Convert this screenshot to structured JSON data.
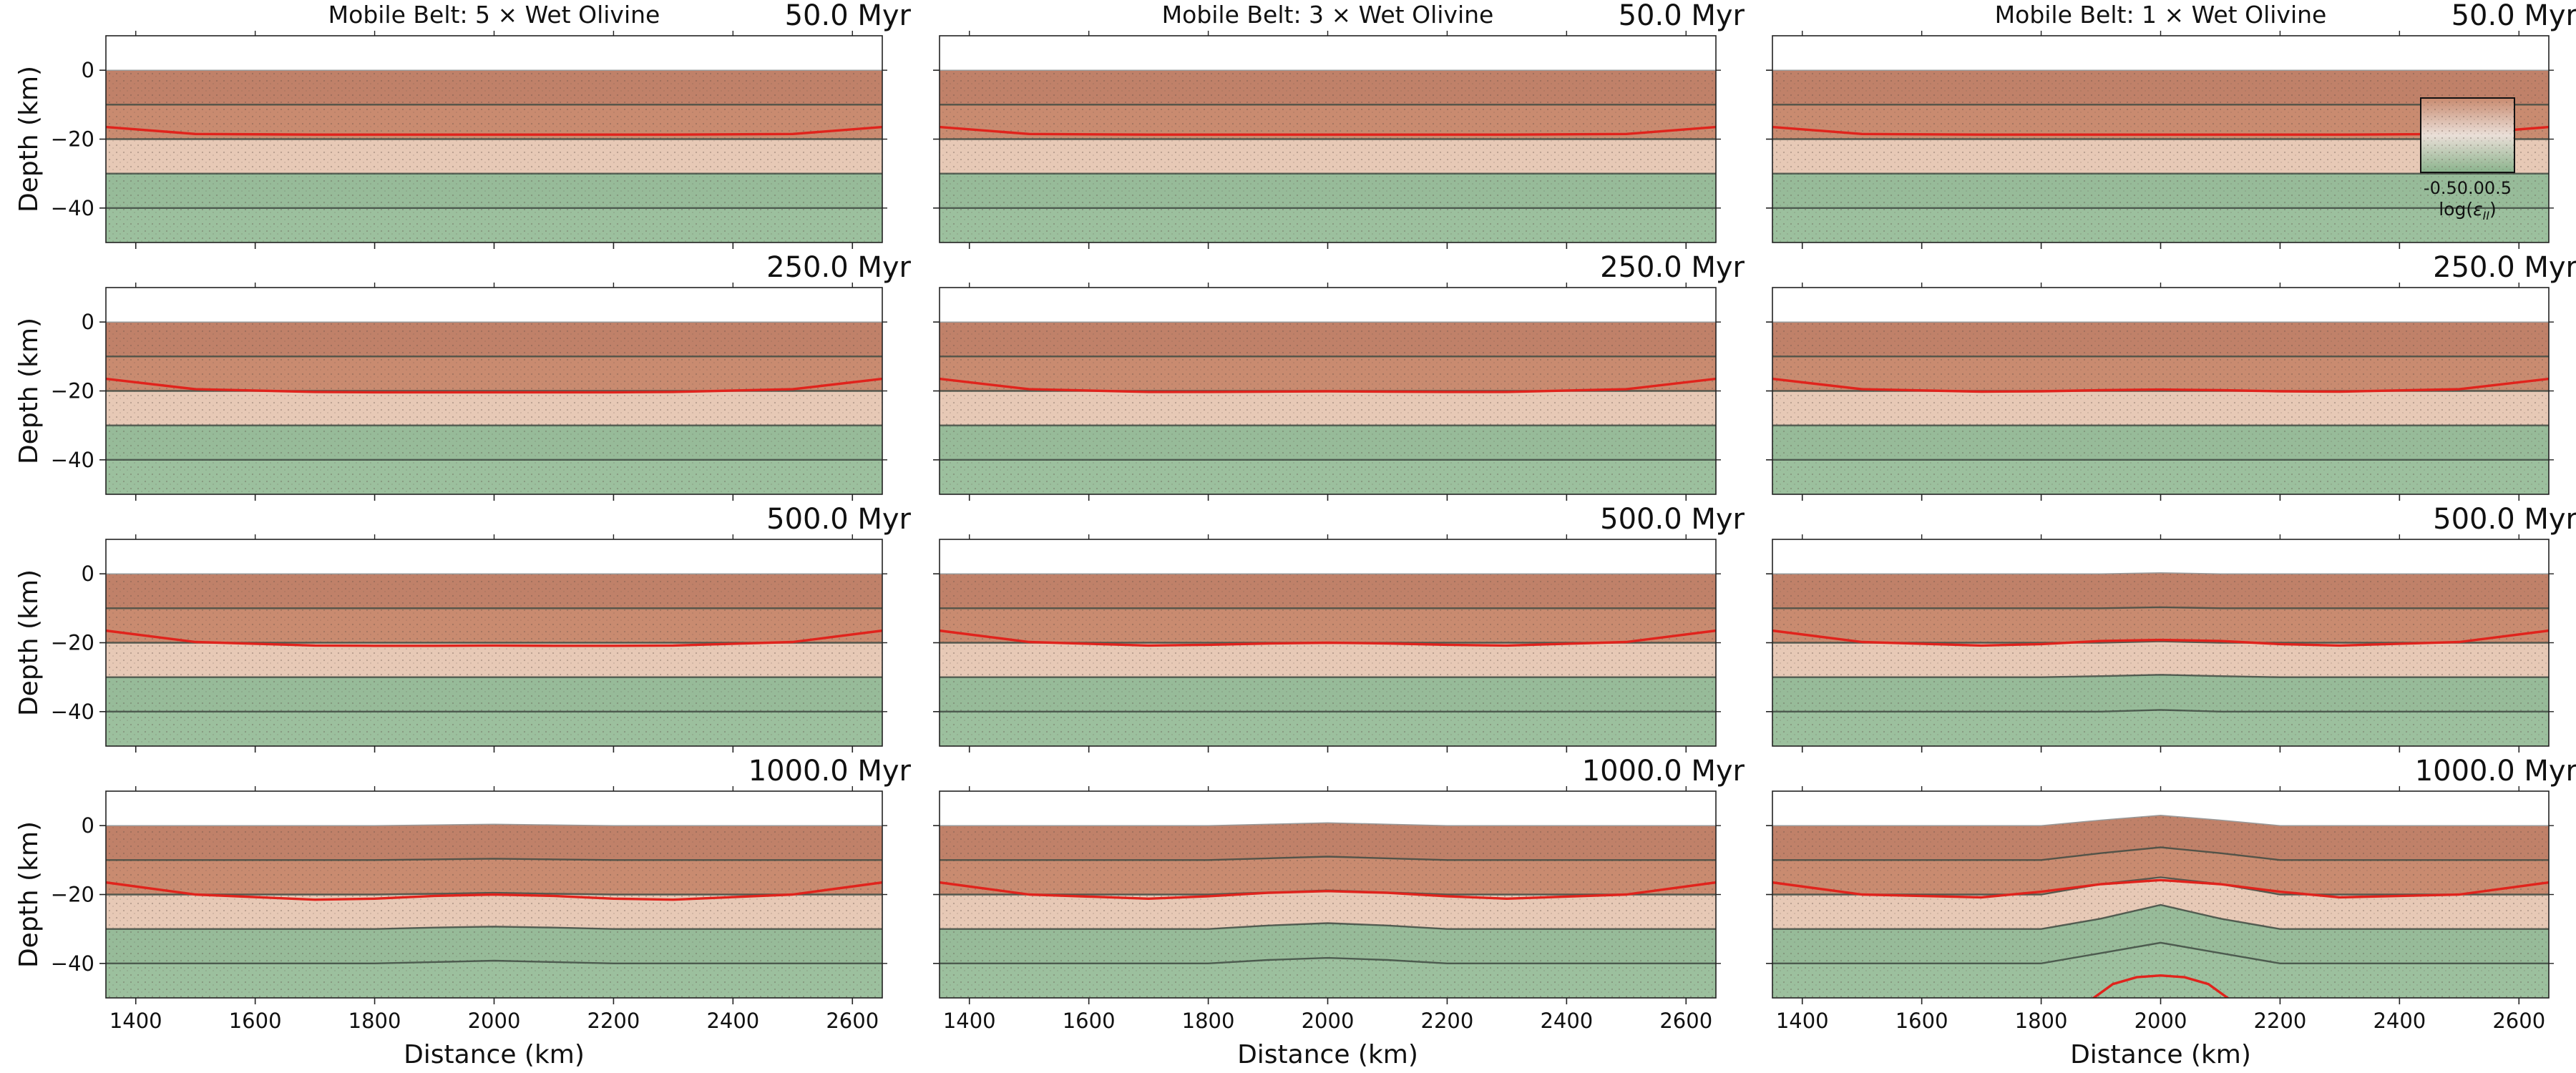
{
  "figure": {
    "colors": {
      "upper_crust": "#c98b70",
      "upper_crust_dark": "#b77862",
      "lower_crust": "#e7c9b6",
      "mantle": "#9cc09e",
      "mantle_dark": "#8aaf8e",
      "interface_line": "#3f4a42",
      "isotherm_line": "#e0231c",
      "mesh_dots": "#5a4a42"
    }
  },
  "chart_data": {
    "type": "heatmap",
    "description_of_axes": "cross-sections",
    "xlabel": "Distance (km)",
    "ylabel": "Depth (km)",
    "xlim": [
      1350,
      2650
    ],
    "ylim": [
      -50,
      10
    ],
    "xticks": [
      1400,
      1600,
      1800,
      2000,
      2200,
      2400,
      2600
    ],
    "yticks": [
      0,
      -20,
      -40
    ],
    "x_tick_labels": [
      "1400",
      "1600",
      "1800",
      "2000",
      "2200",
      "2400",
      "2600"
    ],
    "y_tick_labels": [
      "0",
      "−20",
      "−40"
    ],
    "layers": [
      {
        "name": "upper crust",
        "top_km": 0,
        "bottom_km": -20
      },
      {
        "name": "lower crust",
        "top_km": -20,
        "bottom_km": -30
      },
      {
        "name": "mantle lithosphere",
        "top_km": -30,
        "bottom_km": -50
      }
    ],
    "columns": [
      {
        "title": "Mobile Belt: 5 × Wet Olivine",
        "factor": 5
      },
      {
        "title": "Mobile Belt: 3 × Wet Olivine",
        "factor": 3
      },
      {
        "title": "Mobile Belt: 1 × Wet Olivine",
        "factor": 1
      }
    ],
    "rows": [
      {
        "time_label": "50.0 Myr",
        "time_myr": 50
      },
      {
        "time_label": "250.0 Myr",
        "time_myr": 250
      },
      {
        "time_label": "500.0 Myr",
        "time_myr": 500
      },
      {
        "time_label": "1000.0 Myr",
        "time_myr": 1000
      }
    ],
    "interfaces_x": [
      1350,
      1500,
      1700,
      1800,
      1900,
      2000,
      2100,
      2200,
      2300,
      2500,
      2650
    ],
    "panels": [
      {
        "row": 0,
        "col": 0,
        "surface": [
          0,
          0,
          0,
          0,
          0,
          0,
          0,
          0,
          0,
          0,
          0
        ],
        "interfaces": [
          [
            -10,
            -10,
            -10,
            -10,
            -10,
            -10,
            -10,
            -10,
            -10,
            -10,
            -10
          ],
          [
            -20,
            -20,
            -20,
            -20,
            -20,
            -20,
            -20,
            -20,
            -20,
            -20,
            -20
          ],
          [
            -30,
            -30,
            -30,
            -30,
            -30,
            -30,
            -30,
            -30,
            -30,
            -30,
            -30
          ],
          [
            -40,
            -40,
            -40,
            -40,
            -40,
            -40,
            -40,
            -40,
            -40,
            -40,
            -40
          ]
        ],
        "isotherm": [
          -16.5,
          -18.5,
          -18.7,
          -18.7,
          -18.7,
          -18.7,
          -18.7,
          -18.7,
          -18.7,
          -18.5,
          -16.5
        ]
      },
      {
        "row": 0,
        "col": 1,
        "surface": [
          0,
          0,
          0,
          0,
          0,
          0,
          0,
          0,
          0,
          0,
          0
        ],
        "interfaces": [
          [
            -10,
            -10,
            -10,
            -10,
            -10,
            -10,
            -10,
            -10,
            -10,
            -10,
            -10
          ],
          [
            -20,
            -20,
            -20,
            -20,
            -20,
            -20,
            -20,
            -20,
            -20,
            -20,
            -20
          ],
          [
            -30,
            -30,
            -30,
            -30,
            -30,
            -30,
            -30,
            -30,
            -30,
            -30,
            -30
          ],
          [
            -40,
            -40,
            -40,
            -40,
            -40,
            -40,
            -40,
            -40,
            -40,
            -40,
            -40
          ]
        ],
        "isotherm": [
          -16.5,
          -18.5,
          -18.7,
          -18.7,
          -18.7,
          -18.7,
          -18.7,
          -18.7,
          -18.7,
          -18.5,
          -16.5
        ]
      },
      {
        "row": 0,
        "col": 2,
        "surface": [
          0,
          0,
          0,
          0,
          0,
          0,
          0,
          0,
          0,
          0,
          0
        ],
        "interfaces": [
          [
            -10,
            -10,
            -10,
            -10,
            -10,
            -10,
            -10,
            -10,
            -10,
            -10,
            -10
          ],
          [
            -20,
            -20,
            -20,
            -20,
            -20,
            -20,
            -20,
            -20,
            -20,
            -20,
            -20
          ],
          [
            -30,
            -30,
            -30,
            -30,
            -30,
            -30,
            -30,
            -30,
            -30,
            -30,
            -30
          ],
          [
            -40,
            -40,
            -40,
            -40,
            -40,
            -40,
            -40,
            -40,
            -40,
            -40,
            -40
          ]
        ],
        "isotherm": [
          -16.5,
          -18.5,
          -18.7,
          -18.7,
          -18.7,
          -18.7,
          -18.7,
          -18.7,
          -18.7,
          -18.5,
          -16.5
        ]
      },
      {
        "row": 1,
        "col": 0,
        "surface": [
          0,
          0,
          0,
          0,
          0,
          0,
          0,
          0,
          0,
          0,
          0
        ],
        "interfaces": [
          [
            -10,
            -10,
            -10,
            -10,
            -10,
            -10,
            -10,
            -10,
            -10,
            -10,
            -10
          ],
          [
            -20,
            -20,
            -20,
            -20,
            -20,
            -20,
            -20,
            -20,
            -20,
            -20,
            -20
          ],
          [
            -30,
            -30,
            -30,
            -30,
            -30,
            -30,
            -30,
            -30,
            -30,
            -30,
            -30
          ],
          [
            -40,
            -40,
            -40,
            -40,
            -40,
            -40,
            -40,
            -40,
            -40,
            -40,
            -40
          ]
        ],
        "isotherm": [
          -16.5,
          -19.5,
          -20.3,
          -20.4,
          -20.4,
          -20.4,
          -20.4,
          -20.4,
          -20.3,
          -19.5,
          -16.5
        ]
      },
      {
        "row": 1,
        "col": 1,
        "surface": [
          0,
          0,
          0,
          0,
          0,
          0,
          0,
          0,
          0,
          0,
          0
        ],
        "interfaces": [
          [
            -10,
            -10,
            -10,
            -10,
            -10,
            -10,
            -10,
            -10,
            -10,
            -10,
            -10
          ],
          [
            -20,
            -20,
            -20,
            -20,
            -20,
            -20,
            -20,
            -20,
            -20,
            -20,
            -20
          ],
          [
            -30,
            -30,
            -30,
            -30,
            -30,
            -30,
            -30,
            -30,
            -30,
            -30,
            -30
          ],
          [
            -40,
            -40,
            -40,
            -40,
            -40,
            -40,
            -40,
            -40,
            -40,
            -40,
            -40
          ]
        ],
        "isotherm": [
          -16.5,
          -19.5,
          -20.3,
          -20.3,
          -20.2,
          -20.1,
          -20.2,
          -20.3,
          -20.3,
          -19.5,
          -16.5
        ]
      },
      {
        "row": 1,
        "col": 2,
        "surface": [
          0,
          0,
          0,
          0,
          0,
          0,
          0,
          0,
          0,
          0,
          0
        ],
        "interfaces": [
          [
            -10,
            -10,
            -10,
            -10,
            -10,
            -10,
            -10,
            -10,
            -10,
            -10,
            -10
          ],
          [
            -20,
            -20,
            -20,
            -20,
            -20,
            -20,
            -20,
            -20,
            -20,
            -20,
            -20
          ],
          [
            -30,
            -30,
            -30,
            -30,
            -30,
            -30,
            -30,
            -30,
            -30,
            -30,
            -30
          ],
          [
            -40,
            -40,
            -40,
            -40,
            -40,
            -40,
            -40,
            -40,
            -40,
            -40,
            -40
          ]
        ],
        "isotherm": [
          -16.5,
          -19.5,
          -20.2,
          -20.1,
          -19.8,
          -19.6,
          -19.8,
          -20.1,
          -20.2,
          -19.5,
          -16.5
        ]
      },
      {
        "row": 2,
        "col": 0,
        "surface": [
          0,
          0,
          0,
          0,
          0,
          0,
          0,
          0,
          0,
          0,
          0
        ],
        "interfaces": [
          [
            -10,
            -10,
            -10,
            -10,
            -10,
            -10,
            -10,
            -10,
            -10,
            -10,
            -10
          ],
          [
            -20,
            -20,
            -20,
            -20,
            -20,
            -20,
            -20,
            -20,
            -20,
            -20,
            -20
          ],
          [
            -30,
            -30,
            -30,
            -30,
            -30,
            -30,
            -30,
            -30,
            -30,
            -30,
            -30
          ],
          [
            -40,
            -40,
            -40,
            -40,
            -40,
            -40,
            -40,
            -40,
            -40,
            -40,
            -40
          ]
        ],
        "isotherm": [
          -16.5,
          -19.8,
          -20.8,
          -20.9,
          -20.9,
          -20.8,
          -20.9,
          -20.9,
          -20.8,
          -19.8,
          -16.5
        ]
      },
      {
        "row": 2,
        "col": 1,
        "surface": [
          0,
          0,
          0,
          0,
          0,
          0,
          0,
          0,
          0,
          0,
          0
        ],
        "interfaces": [
          [
            -10,
            -10,
            -10,
            -10,
            -10,
            -10,
            -10,
            -10,
            -10,
            -10,
            -10
          ],
          [
            -20,
            -20,
            -20,
            -20,
            -20,
            -20,
            -20,
            -20,
            -20,
            -20,
            -20
          ],
          [
            -30,
            -30,
            -30,
            -30,
            -30,
            -30,
            -30,
            -30,
            -30,
            -30,
            -30
          ],
          [
            -40,
            -40,
            -40,
            -40,
            -40,
            -40,
            -40,
            -40,
            -40,
            -40,
            -40
          ]
        ],
        "isotherm": [
          -16.5,
          -19.8,
          -20.8,
          -20.6,
          -20.2,
          -20.0,
          -20.2,
          -20.6,
          -20.8,
          -19.8,
          -16.5
        ]
      },
      {
        "row": 2,
        "col": 2,
        "surface": [
          0,
          0,
          0,
          0,
          0,
          0.3,
          0,
          0,
          0,
          0,
          0
        ],
        "interfaces": [
          [
            -10,
            -10,
            -10,
            -10,
            -10,
            -9.7,
            -10,
            -10,
            -10,
            -10,
            -10
          ],
          [
            -20,
            -20,
            -20,
            -20,
            -20,
            -19.6,
            -20,
            -20,
            -20,
            -20,
            -20
          ],
          [
            -30,
            -30,
            -30,
            -30,
            -29.7,
            -29.3,
            -29.7,
            -30,
            -30,
            -30,
            -30
          ],
          [
            -40,
            -40,
            -40,
            -40,
            -40,
            -39.5,
            -40,
            -40,
            -40,
            -40,
            -40
          ]
        ],
        "isotherm": [
          -16.5,
          -19.8,
          -20.8,
          -20.4,
          -19.5,
          -19.2,
          -19.5,
          -20.4,
          -20.8,
          -19.8,
          -16.5
        ]
      },
      {
        "row": 3,
        "col": 0,
        "surface": [
          0,
          0,
          0,
          0,
          0.2,
          0.4,
          0.2,
          0,
          0,
          0,
          0
        ],
        "interfaces": [
          [
            -10,
            -10,
            -10,
            -10,
            -9.8,
            -9.6,
            -9.8,
            -10,
            -10,
            -10,
            -10
          ],
          [
            -20,
            -20,
            -20,
            -20,
            -19.8,
            -19.5,
            -19.8,
            -20,
            -20,
            -20,
            -20
          ],
          [
            -30,
            -30,
            -30,
            -30,
            -29.6,
            -29.3,
            -29.6,
            -30,
            -30,
            -30,
            -30
          ],
          [
            -40,
            -40,
            -40,
            -40,
            -39.6,
            -39.2,
            -39.6,
            -40,
            -40,
            -40,
            -40
          ]
        ],
        "isotherm": [
          -16.5,
          -20.0,
          -21.5,
          -21.2,
          -20.4,
          -20.0,
          -20.4,
          -21.2,
          -21.5,
          -20.0,
          -16.5
        ]
      },
      {
        "row": 3,
        "col": 1,
        "surface": [
          0,
          0,
          0,
          0,
          0.4,
          0.8,
          0.4,
          0,
          0,
          0,
          0
        ],
        "interfaces": [
          [
            -10,
            -10,
            -10,
            -10,
            -9.5,
            -9.0,
            -9.5,
            -10,
            -10,
            -10,
            -10
          ],
          [
            -20,
            -20,
            -20,
            -20,
            -19.4,
            -18.8,
            -19.4,
            -20,
            -20,
            -20,
            -20
          ],
          [
            -30,
            -30,
            -30,
            -30,
            -29.0,
            -28.3,
            -29.0,
            -30,
            -30,
            -30,
            -30
          ],
          [
            -40,
            -40,
            -40,
            -40,
            -39.0,
            -38.4,
            -39.0,
            -40,
            -40,
            -40,
            -40
          ]
        ],
        "isotherm": [
          -16.5,
          -20.0,
          -21.2,
          -20.5,
          -19.5,
          -19.0,
          -19.5,
          -20.5,
          -21.2,
          -20.0,
          -16.5
        ]
      },
      {
        "row": 3,
        "col": 2,
        "surface": [
          0,
          0,
          0,
          0,
          1.6,
          3.0,
          1.6,
          0,
          0,
          0,
          0
        ],
        "interfaces": [
          [
            -10,
            -10,
            -10,
            -10,
            -8.0,
            -6.3,
            -8.0,
            -10,
            -10,
            -10,
            -10
          ],
          [
            -20,
            -20,
            -20,
            -20,
            -17.0,
            -15.0,
            -17.0,
            -20,
            -20,
            -20,
            -20
          ],
          [
            -30,
            -30,
            -30,
            -30,
            -27.0,
            -23.0,
            -27.0,
            -30,
            -30,
            -30,
            -30
          ],
          [
            -40,
            -40,
            -40,
            -40,
            -37.0,
            -34.0,
            -37.0,
            -40,
            -40,
            -40,
            -40
          ]
        ],
        "isotherm": [
          -16.5,
          -20.0,
          -20.8,
          -19.2,
          -17.0,
          -15.8,
          -17.0,
          -19.2,
          -20.8,
          -20.0,
          -16.5
        ],
        "isotherm2": {
          "x": [
            1880,
            1920,
            1960,
            2000,
            2040,
            2080,
            2120
          ],
          "y": [
            -51,
            -46,
            -44,
            -43.5,
            -44,
            -46,
            -51
          ]
        }
      }
    ],
    "colorbar": {
      "label": "log(ε̇_II)",
      "label_main": "log(",
      "label_eps": "ε",
      "label_sub": "II",
      "label_close": ")",
      "tick_text": "-0.50.00.5",
      "range": [
        -0.75,
        0.75
      ]
    }
  }
}
